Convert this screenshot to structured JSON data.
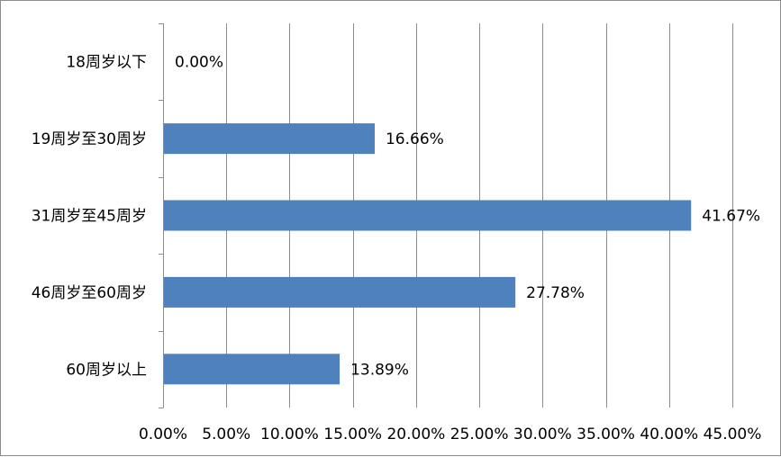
{
  "chart_data": {
    "type": "bar",
    "orientation": "horizontal",
    "title": "",
    "xlabel": "",
    "ylabel": "",
    "categories": [
      "18周岁以下",
      "19周岁至30周岁",
      "31周岁至45周岁",
      "46周岁至60周岁",
      "60周岁以上"
    ],
    "values": [
      0.0,
      16.66,
      41.67,
      27.78,
      13.89
    ],
    "value_labels": [
      "0.00%",
      "16.66%",
      "41.67%",
      "27.78%",
      "13.89%"
    ],
    "xlim": [
      0,
      45
    ],
    "x_ticks": [
      0,
      5,
      10,
      15,
      20,
      25,
      30,
      35,
      40,
      45
    ],
    "x_tick_labels": [
      "0.00%",
      "5.00%",
      "10.00%",
      "15.00%",
      "20.00%",
      "25.00%",
      "30.00%",
      "35.00%",
      "40.00%",
      "45.00%"
    ],
    "grid": "vertical",
    "legend": "none",
    "colors": {
      "bar": "#4f81bd",
      "grid": "#8c8c8c",
      "axis": "#8c8c8c"
    }
  }
}
